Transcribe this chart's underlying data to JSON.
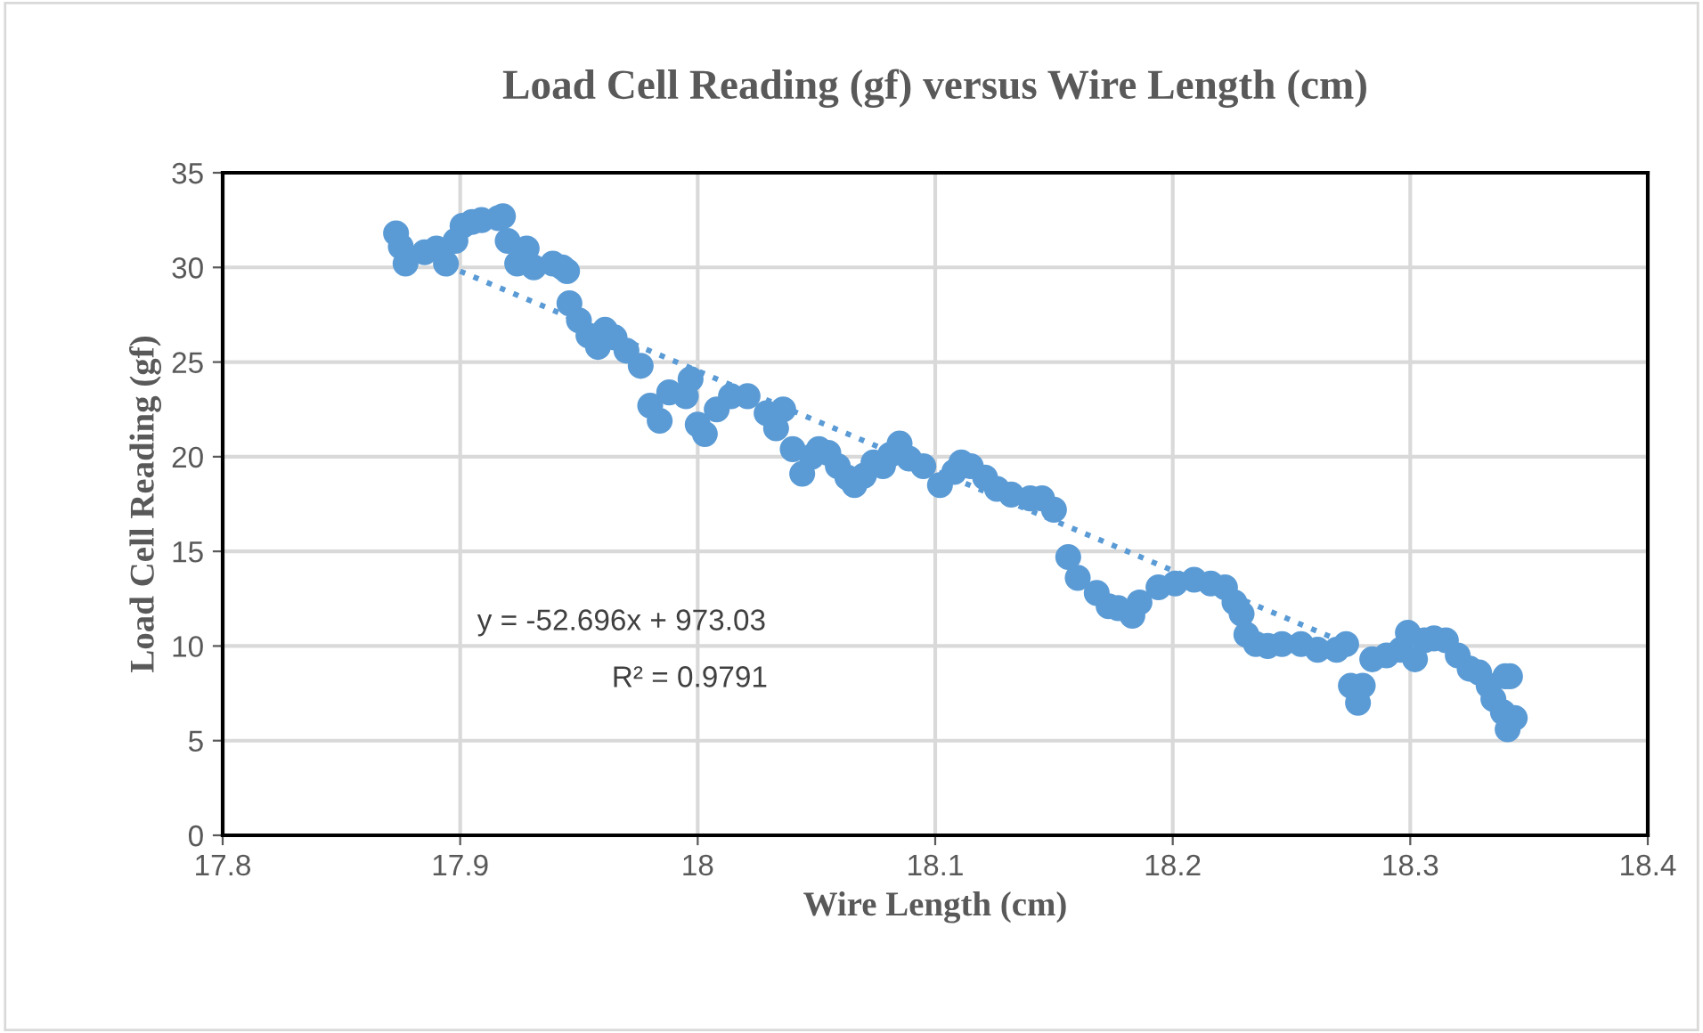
{
  "chart_data": {
    "type": "scatter",
    "title": "Load Cell Reading (gf) versus Wire Length (cm)",
    "xlabel": "Wire Length (cm)",
    "ylabel": "Load Cell Reading (gf)",
    "xlim": [
      17.8,
      18.4
    ],
    "xticks": [
      17.8,
      17.9,
      18,
      18.1,
      18.2,
      18.3,
      18.4
    ],
    "ylim": [
      0,
      35
    ],
    "yticks": [
      0,
      5,
      10,
      15,
      20,
      25,
      30,
      35
    ],
    "grid": true,
    "legend": false,
    "annotations": [
      "y = -52.696x + 973.03",
      "R² = 0.9791"
    ],
    "series": [
      {
        "color": "#5b9bd5",
        "marker": "circle",
        "x": [
          17.873,
          17.875,
          17.877,
          17.885,
          17.89,
          17.894,
          17.898,
          17.901,
          17.905,
          17.909,
          17.916,
          17.918,
          17.92,
          17.924,
          17.928,
          17.931,
          17.939,
          17.943,
          17.945,
          17.946,
          17.95,
          17.954,
          17.958,
          17.961,
          17.965,
          17.97,
          17.976,
          17.98,
          17.984,
          17.988,
          17.995,
          17.997,
          18.0,
          18.003,
          18.008,
          18.014,
          18.021,
          18.029,
          18.033,
          18.036,
          18.04,
          18.044,
          18.048,
          18.051,
          18.055,
          18.059,
          18.063,
          18.066,
          18.07,
          18.074,
          18.078,
          18.081,
          18.085,
          18.089,
          18.095,
          18.102,
          18.108,
          18.111,
          18.115,
          18.121,
          18.126,
          18.132,
          18.14,
          18.145,
          18.15,
          18.156,
          18.16,
          18.168,
          18.173,
          18.177,
          18.183,
          18.186,
          18.194,
          18.201,
          18.209,
          18.216,
          18.222,
          18.226,
          18.229,
          18.231,
          18.235,
          18.24,
          18.246,
          18.254,
          18.261,
          18.269,
          18.273,
          18.275,
          18.278,
          18.28,
          18.284,
          18.29,
          18.296,
          18.299,
          18.302,
          18.306,
          18.31,
          18.315,
          18.32,
          18.325,
          18.329,
          18.333,
          18.335,
          18.339,
          18.34,
          18.341,
          18.344,
          18.342
        ],
        "values": [
          31.8,
          31.1,
          30.2,
          30.8,
          31.0,
          30.2,
          31.4,
          32.2,
          32.4,
          32.5,
          32.6,
          32.7,
          31.4,
          30.2,
          31.0,
          30.0,
          30.2,
          30.0,
          29.8,
          28.1,
          27.2,
          26.4,
          25.8,
          26.7,
          26.3,
          25.6,
          24.8,
          22.7,
          21.9,
          23.4,
          23.2,
          24.1,
          21.7,
          21.2,
          22.5,
          23.2,
          23.2,
          22.3,
          21.5,
          22.5,
          20.4,
          19.1,
          20.0,
          20.4,
          20.2,
          19.5,
          18.9,
          18.5,
          19.0,
          19.7,
          19.5,
          20.1,
          20.7,
          19.9,
          19.5,
          18.5,
          19.2,
          19.7,
          19.5,
          18.9,
          18.3,
          18.0,
          17.8,
          17.8,
          17.2,
          14.7,
          13.6,
          12.8,
          12.1,
          12.0,
          11.6,
          12.3,
          13.1,
          13.3,
          13.5,
          13.3,
          13.1,
          12.3,
          11.7,
          10.6,
          10.1,
          10.0,
          10.1,
          10.1,
          9.8,
          9.8,
          10.1,
          7.9,
          7.0,
          7.9,
          9.3,
          9.5,
          9.8,
          10.7,
          9.3,
          10.3,
          10.4,
          10.3,
          9.5,
          8.8,
          8.6,
          7.9,
          7.2,
          6.5,
          8.4,
          5.6,
          6.2,
          8.4
        ]
      },
      {
        "type": "line",
        "line_style": "dotted",
        "color": "#5b9bd5",
        "x": [
          17.9,
          18.27
        ],
        "values": [
          29.8,
          10.3
        ]
      }
    ]
  }
}
